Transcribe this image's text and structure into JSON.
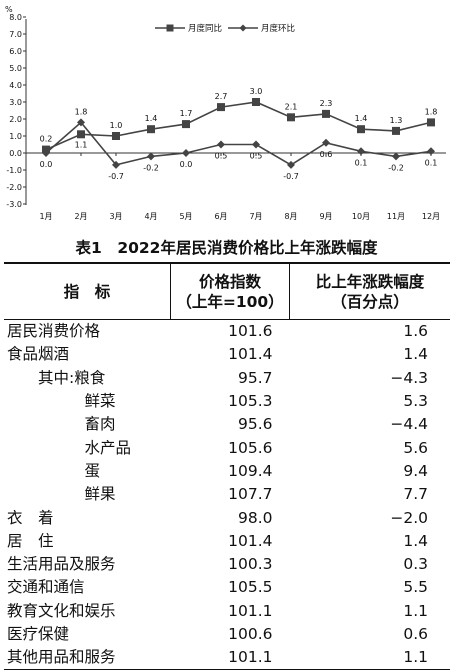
{
  "chart_data": {
    "type": "line",
    "title": "",
    "unit_label": "%",
    "xlabel": "",
    "ylabel": "",
    "categories": [
      "1月",
      "2月",
      "3月",
      "4月",
      "5月",
      "6月",
      "7月",
      "8月",
      "9月",
      "10月",
      "11月",
      "12月"
    ],
    "ylim": [
      -3.0,
      8.0
    ],
    "yticks": [
      "8.0",
      "7.0",
      "6.0",
      "5.0",
      "4.0",
      "3.0",
      "2.0",
      "1.0",
      "0.0",
      "-1.0",
      "-2.0",
      "-3.0"
    ],
    "legend_position": "top",
    "grid": false,
    "series": [
      {
        "name": "月度同比",
        "marker": "square",
        "color": "#444444",
        "values": [
          0.2,
          1.1,
          1.0,
          1.4,
          1.7,
          2.7,
          3.0,
          2.1,
          2.3,
          1.4,
          1.3,
          1.8
        ],
        "labels": [
          "0.2",
          "1.1",
          "1.0",
          "1.4",
          "1.7",
          "2.7",
          "3.0",
          "2.1",
          "2.3",
          "1.4",
          "1.3",
          "1.8"
        ]
      },
      {
        "name": "月度环比",
        "marker": "diamond",
        "color": "#444444",
        "values": [
          0.0,
          1.8,
          -0.7,
          -0.2,
          0.0,
          0.5,
          0.5,
          -0.7,
          0.6,
          0.1,
          -0.2,
          0.1
        ],
        "labels": [
          "0.0",
          "1.8",
          "-0.7",
          "-0.2",
          "0.0",
          "0.5",
          "0.5",
          "-0.7",
          "0.6",
          "0.1",
          "-0.2",
          "0.1"
        ]
      }
    ]
  },
  "table": {
    "title": "表1　2022年居民消费价格比上年涨跌幅度",
    "headers": {
      "name": "指　标",
      "index_line1": "价格指数",
      "index_line2": "（上年=100）",
      "change_line1": "比上年涨跌幅度",
      "change_line2": "（百分点）"
    },
    "rows": [
      {
        "name": "居民消费价格",
        "index": "101.6",
        "change": "1.6"
      },
      {
        "name": "食品烟酒",
        "index": "101.4",
        "change": "1.4"
      },
      {
        "name": "　　其中:粮食",
        "index": "95.7",
        "change": "−4.3"
      },
      {
        "name": "　　　　　鲜菜",
        "index": "105.3",
        "change": "5.3"
      },
      {
        "name": "　　　　　畜肉",
        "index": "95.6",
        "change": "−4.4"
      },
      {
        "name": "　　　　　水产品",
        "index": "105.6",
        "change": "5.6"
      },
      {
        "name": "　　　　　蛋",
        "index": "109.4",
        "change": "9.4"
      },
      {
        "name": "　　　　　鲜果",
        "index": "107.7",
        "change": "7.7"
      },
      {
        "name": "衣　着",
        "index": "98.0",
        "change": "−2.0"
      },
      {
        "name": "居　住",
        "index": "101.4",
        "change": "1.4"
      },
      {
        "name": "生活用品及服务",
        "index": "100.3",
        "change": "0.3"
      },
      {
        "name": "交通和通信",
        "index": "105.5",
        "change": "5.5"
      },
      {
        "name": "教育文化和娱乐",
        "index": "101.1",
        "change": "1.1"
      },
      {
        "name": "医疗保健",
        "index": "100.6",
        "change": "0.6"
      },
      {
        "name": "其他用品和服务",
        "index": "101.1",
        "change": "1.1"
      }
    ]
  }
}
